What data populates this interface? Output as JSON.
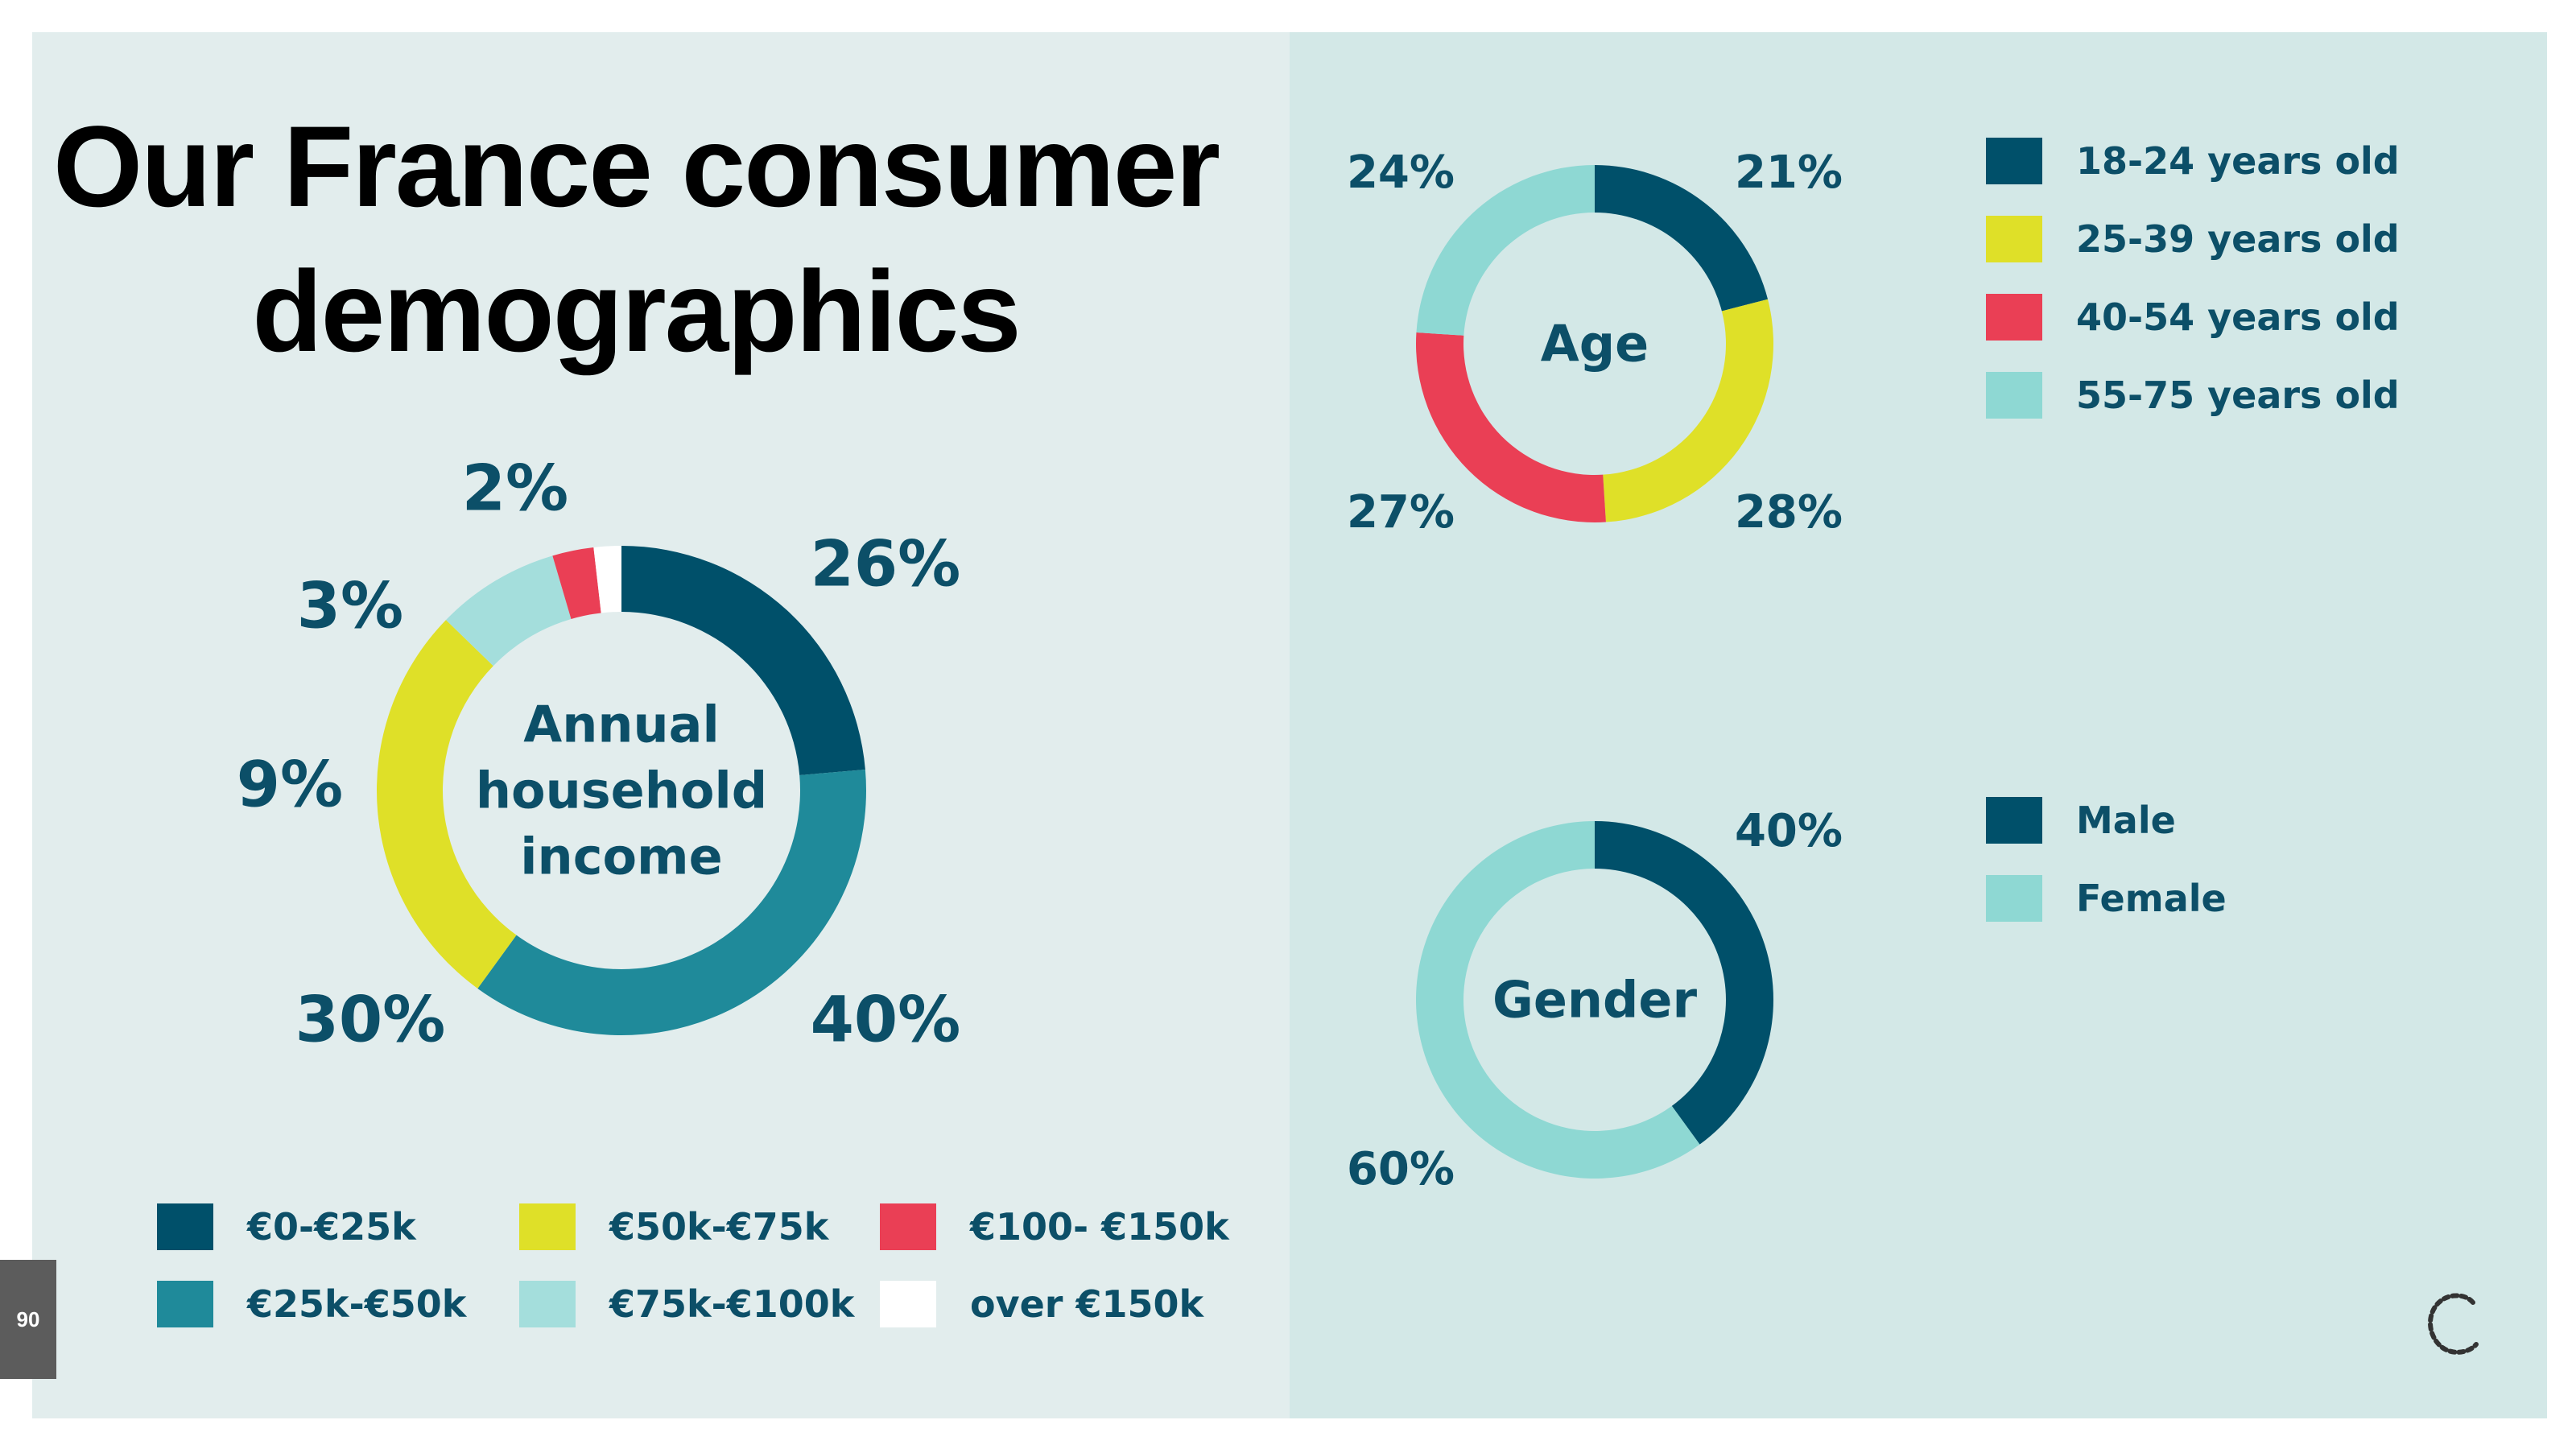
{
  "title": "Our France consumer demographics",
  "page_number": "90",
  "colors": {
    "dark_teal": "#00506a",
    "teal": "#1f8a9a",
    "yellow": "#dfe028",
    "light_teal": "#a4dedc",
    "red": "#ea3f55",
    "white": "#ffffff",
    "mint": "#8ed8d3"
  },
  "chart_data": [
    {
      "type": "pie",
      "title": "Annual household income",
      "categories": [
        "€0-€25k",
        "€25k-€50k",
        "€50k-€75k",
        "€75k-€100k",
        "€100- €150k",
        "over €150k"
      ],
      "values": [
        26,
        40,
        30,
        9,
        3,
        2
      ],
      "labels": [
        "26%",
        "40%",
        "30%",
        "9%",
        "3%",
        "2%"
      ],
      "colors": [
        "#00506a",
        "#1f8a9a",
        "#dfe028",
        "#a4dedc",
        "#ea3f55",
        "#ffffff"
      ],
      "legend_position": "bottom"
    },
    {
      "type": "pie",
      "title": "Age",
      "categories": [
        "18-24 years old",
        "25-39 years old",
        "40-54 years old",
        "55-75 years old"
      ],
      "values": [
        21,
        28,
        27,
        24
      ],
      "labels": [
        "21%",
        "28%",
        "27%",
        "24%"
      ],
      "colors": [
        "#00506a",
        "#dfe028",
        "#ea3f55",
        "#8ed8d3"
      ],
      "legend_position": "right"
    },
    {
      "type": "pie",
      "title": "Gender",
      "categories": [
        "Male",
        "Female"
      ],
      "values": [
        40,
        60
      ],
      "labels": [
        "40%",
        "60%"
      ],
      "colors": [
        "#00506a",
        "#8ed8d3"
      ],
      "legend_position": "right"
    }
  ]
}
